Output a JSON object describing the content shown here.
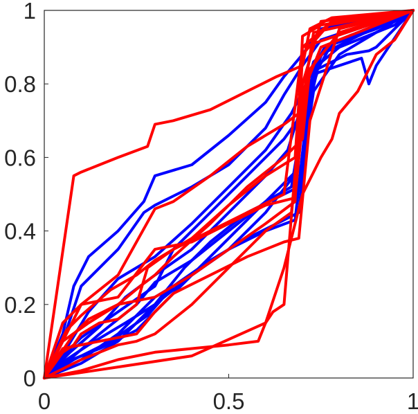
{
  "chart_data": {
    "type": "line",
    "title": "",
    "xlabel": "",
    "ylabel": "",
    "xlim": [
      0,
      1
    ],
    "ylim": [
      0,
      1
    ],
    "xticks": [
      0,
      0.5,
      1
    ],
    "yticks": [
      0,
      0.2,
      0.4,
      0.6,
      0.8,
      1
    ],
    "xtick_labels": [
      "0",
      "0.5",
      "1"
    ],
    "ytick_labels": [
      "0",
      "0.2",
      "0.4",
      "0.6",
      "0.8",
      "1"
    ],
    "grid": false,
    "legend": "none",
    "colors": {
      "blue": "#0000ff",
      "red": "#ff0000",
      "axis": "#262626"
    },
    "series": [
      {
        "color": "blue",
        "points": [
          [
            0,
            0
          ],
          [
            0.05,
            0.12
          ],
          [
            0.08,
            0.25
          ],
          [
            0.12,
            0.33
          ],
          [
            0.2,
            0.4
          ],
          [
            0.27,
            0.48
          ],
          [
            0.3,
            0.55
          ],
          [
            0.4,
            0.58
          ],
          [
            0.5,
            0.66
          ],
          [
            0.6,
            0.75
          ],
          [
            0.65,
            0.82
          ],
          [
            0.7,
            0.88
          ],
          [
            0.75,
            0.95
          ],
          [
            0.9,
            0.98
          ],
          [
            1,
            1
          ]
        ]
      },
      {
        "color": "blue",
        "points": [
          [
            0,
            0
          ],
          [
            0.05,
            0.1
          ],
          [
            0.1,
            0.25
          ],
          [
            0.2,
            0.35
          ],
          [
            0.27,
            0.45
          ],
          [
            0.3,
            0.47
          ],
          [
            0.4,
            0.52
          ],
          [
            0.5,
            0.58
          ],
          [
            0.6,
            0.68
          ],
          [
            0.65,
            0.77
          ],
          [
            0.7,
            0.85
          ],
          [
            0.75,
            0.92
          ],
          [
            0.9,
            0.97
          ],
          [
            1,
            1
          ]
        ]
      },
      {
        "color": "blue",
        "points": [
          [
            0,
            0
          ],
          [
            0.06,
            0.08
          ],
          [
            0.12,
            0.18
          ],
          [
            0.2,
            0.27
          ],
          [
            0.3,
            0.33
          ],
          [
            0.4,
            0.42
          ],
          [
            0.5,
            0.52
          ],
          [
            0.6,
            0.62
          ],
          [
            0.67,
            0.72
          ],
          [
            0.72,
            0.82
          ],
          [
            0.76,
            0.9
          ],
          [
            0.9,
            0.95
          ],
          [
            1,
            1
          ]
        ]
      },
      {
        "color": "blue",
        "points": [
          [
            0,
            0
          ],
          [
            0.07,
            0.07
          ],
          [
            0.15,
            0.14
          ],
          [
            0.22,
            0.22
          ],
          [
            0.3,
            0.28
          ],
          [
            0.4,
            0.35
          ],
          [
            0.5,
            0.45
          ],
          [
            0.6,
            0.55
          ],
          [
            0.66,
            0.62
          ],
          [
            0.7,
            0.75
          ],
          [
            0.73,
            0.86
          ],
          [
            0.8,
            0.92
          ],
          [
            1,
            1
          ]
        ]
      },
      {
        "color": "blue",
        "points": [
          [
            0,
            0
          ],
          [
            0.08,
            0.06
          ],
          [
            0.15,
            0.12
          ],
          [
            0.25,
            0.2
          ],
          [
            0.3,
            0.26
          ],
          [
            0.4,
            0.32
          ],
          [
            0.5,
            0.4
          ],
          [
            0.6,
            0.48
          ],
          [
            0.67,
            0.52
          ],
          [
            0.7,
            0.7
          ],
          [
            0.74,
            0.85
          ],
          [
            0.8,
            0.9
          ],
          [
            0.95,
            0.96
          ],
          [
            1,
            1
          ]
        ]
      },
      {
        "color": "blue",
        "points": [
          [
            0,
            0
          ],
          [
            0.08,
            0.05
          ],
          [
            0.18,
            0.1
          ],
          [
            0.28,
            0.17
          ],
          [
            0.35,
            0.25
          ],
          [
            0.45,
            0.32
          ],
          [
            0.55,
            0.38
          ],
          [
            0.65,
            0.43
          ],
          [
            0.69,
            0.45
          ],
          [
            0.72,
            0.75
          ],
          [
            0.75,
            0.88
          ],
          [
            0.85,
            0.93
          ],
          [
            1,
            1
          ]
        ]
      },
      {
        "color": "blue",
        "points": [
          [
            0,
            0
          ],
          [
            0.1,
            0.04
          ],
          [
            0.2,
            0.1
          ],
          [
            0.3,
            0.2
          ],
          [
            0.38,
            0.3
          ],
          [
            0.45,
            0.37
          ],
          [
            0.55,
            0.45
          ],
          [
            0.65,
            0.5
          ],
          [
            0.69,
            0.52
          ],
          [
            0.72,
            0.8
          ],
          [
            0.76,
            0.9
          ],
          [
            0.9,
            0.95
          ],
          [
            1,
            1
          ]
        ]
      },
      {
        "color": "blue",
        "points": [
          [
            0,
            0
          ],
          [
            0.1,
            0.05
          ],
          [
            0.2,
            0.12
          ],
          [
            0.3,
            0.22
          ],
          [
            0.4,
            0.28
          ],
          [
            0.5,
            0.35
          ],
          [
            0.6,
            0.4
          ],
          [
            0.68,
            0.43
          ],
          [
            0.71,
            0.7
          ],
          [
            0.74,
            0.84
          ],
          [
            0.82,
            0.88
          ],
          [
            0.88,
            0.89
          ],
          [
            0.9,
            0.9
          ],
          [
            1,
            1
          ]
        ]
      },
      {
        "color": "blue",
        "points": [
          [
            0,
            0
          ],
          [
            0.05,
            0.06
          ],
          [
            0.1,
            0.11
          ],
          [
            0.2,
            0.18
          ],
          [
            0.3,
            0.25
          ],
          [
            0.35,
            0.35
          ],
          [
            0.45,
            0.45
          ],
          [
            0.55,
            0.55
          ],
          [
            0.65,
            0.65
          ],
          [
            0.7,
            0.72
          ],
          [
            0.74,
            0.83
          ],
          [
            0.86,
            0.87
          ],
          [
            0.88,
            0.8
          ],
          [
            0.9,
            0.85
          ],
          [
            1,
            1
          ]
        ]
      },
      {
        "color": "blue",
        "points": [
          [
            0,
            0
          ],
          [
            0.06,
            0.05
          ],
          [
            0.12,
            0.09
          ],
          [
            0.22,
            0.15
          ],
          [
            0.3,
            0.2
          ],
          [
            0.4,
            0.28
          ],
          [
            0.5,
            0.35
          ],
          [
            0.6,
            0.45
          ],
          [
            0.7,
            0.58
          ],
          [
            0.73,
            0.78
          ],
          [
            0.8,
            0.88
          ],
          [
            1,
            1
          ]
        ]
      },
      {
        "color": "blue",
        "points": [
          [
            0,
            0
          ],
          [
            0.05,
            0.04
          ],
          [
            0.15,
            0.08
          ],
          [
            0.25,
            0.13
          ],
          [
            0.32,
            0.2
          ],
          [
            0.42,
            0.3
          ],
          [
            0.52,
            0.4
          ],
          [
            0.62,
            0.5
          ],
          [
            0.7,
            0.58
          ],
          [
            0.73,
            0.82
          ],
          [
            0.78,
            0.91
          ],
          [
            1,
            1
          ]
        ]
      },
      {
        "color": "red",
        "points": [
          [
            0,
            0
          ],
          [
            0.08,
            0.55
          ],
          [
            0.1,
            0.56
          ],
          [
            0.15,
            0.58
          ],
          [
            0.2,
            0.6
          ],
          [
            0.28,
            0.63
          ],
          [
            0.3,
            0.69
          ],
          [
            0.35,
            0.7
          ],
          [
            0.45,
            0.73
          ],
          [
            0.55,
            0.78
          ],
          [
            0.63,
            0.82
          ],
          [
            0.7,
            0.85
          ],
          [
            0.72,
            0.95
          ],
          [
            0.78,
            0.98
          ],
          [
            1,
            1
          ]
        ]
      },
      {
        "color": "red",
        "points": [
          [
            0,
            0
          ],
          [
            0.05,
            0.15
          ],
          [
            0.1,
            0.2
          ],
          [
            0.2,
            0.28
          ],
          [
            0.3,
            0.46
          ],
          [
            0.35,
            0.48
          ],
          [
            0.45,
            0.55
          ],
          [
            0.55,
            0.63
          ],
          [
            0.65,
            0.69
          ],
          [
            0.69,
            0.72
          ],
          [
            0.7,
            0.93
          ],
          [
            0.75,
            0.96
          ],
          [
            1,
            1
          ]
        ]
      },
      {
        "color": "red",
        "points": [
          [
            0,
            0
          ],
          [
            0.06,
            0.13
          ],
          [
            0.1,
            0.17
          ],
          [
            0.18,
            0.24
          ],
          [
            0.25,
            0.28
          ],
          [
            0.3,
            0.32
          ],
          [
            0.4,
            0.38
          ],
          [
            0.5,
            0.47
          ],
          [
            0.6,
            0.55
          ],
          [
            0.68,
            0.6
          ],
          [
            0.7,
            0.9
          ],
          [
            0.78,
            0.97
          ],
          [
            1,
            1
          ]
        ]
      },
      {
        "color": "red",
        "points": [
          [
            0,
            0
          ],
          [
            0.05,
            0.1
          ],
          [
            0.12,
            0.15
          ],
          [
            0.2,
            0.2
          ],
          [
            0.3,
            0.22
          ],
          [
            0.4,
            0.28
          ],
          [
            0.5,
            0.35
          ],
          [
            0.6,
            0.42
          ],
          [
            0.68,
            0.48
          ],
          [
            0.7,
            0.88
          ],
          [
            0.77,
            0.96
          ],
          [
            1,
            1
          ]
        ]
      },
      {
        "color": "red",
        "points": [
          [
            0,
            0
          ],
          [
            0.1,
            0.2
          ],
          [
            0.2,
            0.22
          ],
          [
            0.3,
            0.35
          ],
          [
            0.4,
            0.37
          ],
          [
            0.5,
            0.42
          ],
          [
            0.6,
            0.47
          ],
          [
            0.68,
            0.49
          ],
          [
            0.71,
            0.8
          ],
          [
            0.75,
            0.9
          ],
          [
            1,
            1
          ]
        ]
      },
      {
        "color": "red",
        "points": [
          [
            0,
            0
          ],
          [
            0.05,
            0.08
          ],
          [
            0.15,
            0.1
          ],
          [
            0.25,
            0.12
          ],
          [
            0.3,
            0.18
          ],
          [
            0.35,
            0.23
          ],
          [
            0.45,
            0.28
          ],
          [
            0.55,
            0.33
          ],
          [
            0.65,
            0.37
          ],
          [
            0.69,
            0.38
          ],
          [
            0.72,
            0.7
          ],
          [
            0.8,
            0.95
          ],
          [
            1,
            1
          ]
        ]
      },
      {
        "color": "red",
        "points": [
          [
            0,
            0
          ],
          [
            0.1,
            0.05
          ],
          [
            0.2,
            0.09
          ],
          [
            0.25,
            0.1
          ],
          [
            0.3,
            0.12
          ],
          [
            0.4,
            0.2
          ],
          [
            0.5,
            0.3
          ],
          [
            0.6,
            0.4
          ],
          [
            0.67,
            0.45
          ],
          [
            0.7,
            0.75
          ],
          [
            0.73,
            0.94
          ],
          [
            1,
            1
          ]
        ]
      },
      {
        "color": "red",
        "points": [
          [
            0,
            0
          ],
          [
            0.1,
            0.02
          ],
          [
            0.2,
            0.05
          ],
          [
            0.3,
            0.07
          ],
          [
            0.4,
            0.08
          ],
          [
            0.5,
            0.09
          ],
          [
            0.58,
            0.1
          ],
          [
            0.6,
            0.15
          ],
          [
            0.62,
            0.18
          ],
          [
            0.65,
            0.2
          ],
          [
            0.7,
            0.8
          ],
          [
            0.75,
            0.97
          ],
          [
            1,
            1
          ]
        ]
      },
      {
        "color": "red",
        "points": [
          [
            0,
            0
          ],
          [
            0.05,
            0.07
          ],
          [
            0.08,
            0.09
          ],
          [
            0.1,
            0.12
          ],
          [
            0.15,
            0.15
          ],
          [
            0.2,
            0.16
          ],
          [
            0.25,
            0.2
          ],
          [
            0.28,
            0.3
          ],
          [
            0.35,
            0.35
          ],
          [
            0.45,
            0.4
          ],
          [
            0.55,
            0.45
          ],
          [
            0.65,
            0.5
          ],
          [
            0.7,
            0.9
          ],
          [
            1,
            1
          ]
        ]
      },
      {
        "color": "red",
        "points": [
          [
            0,
            0
          ],
          [
            0.2,
            0.03
          ],
          [
            0.4,
            0.06
          ],
          [
            0.6,
            0.15
          ],
          [
            0.65,
            0.3
          ],
          [
            0.7,
            0.5
          ],
          [
            0.75,
            0.6
          ],
          [
            0.78,
            0.65
          ],
          [
            0.8,
            0.72
          ],
          [
            0.85,
            0.78
          ],
          [
            0.87,
            0.82
          ],
          [
            0.9,
            0.88
          ],
          [
            0.95,
            0.92
          ],
          [
            1,
            1
          ]
        ]
      },
      {
        "color": "red",
        "points": [
          [
            0,
            0
          ],
          [
            0.08,
            0.12
          ],
          [
            0.12,
            0.16
          ],
          [
            0.2,
            0.2
          ],
          [
            0.26,
            0.25
          ],
          [
            0.3,
            0.28
          ],
          [
            0.35,
            0.33
          ],
          [
            0.45,
            0.42
          ],
          [
            0.55,
            0.52
          ],
          [
            0.65,
            0.6
          ],
          [
            0.7,
            0.65
          ],
          [
            0.72,
            0.84
          ],
          [
            0.8,
            0.94
          ],
          [
            1,
            1
          ]
        ]
      }
    ]
  }
}
